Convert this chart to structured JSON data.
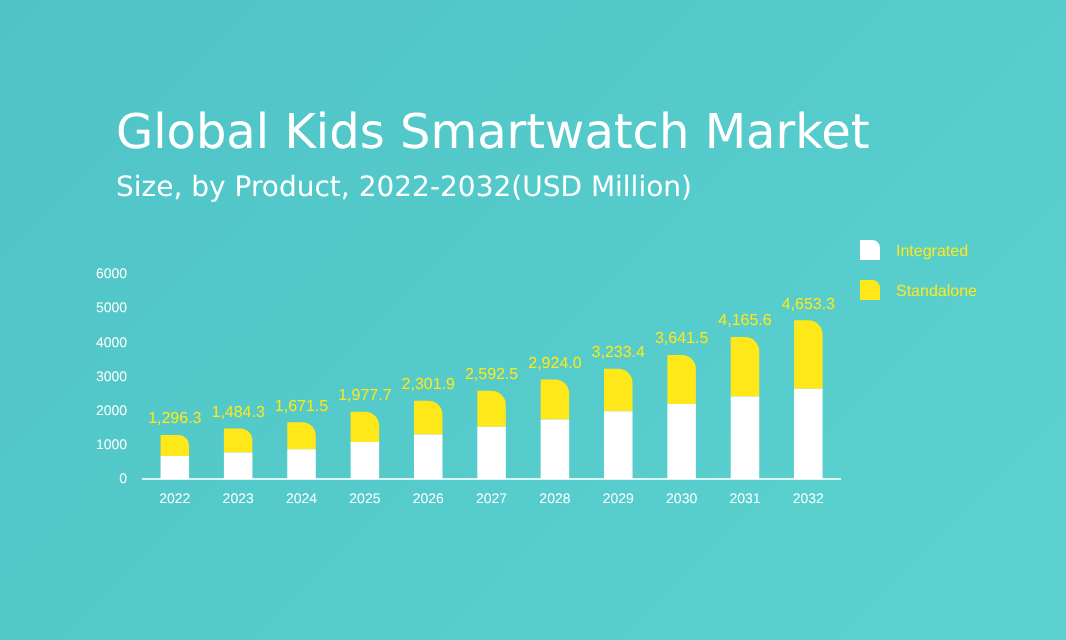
{
  "chart_data": {
    "type": "bar",
    "title": "Global Kids Smartwatch Market",
    "subtitle": "Size, by Product, 2022-2032(USD Million)",
    "categories": [
      "2022",
      "2023",
      "2024",
      "2025",
      "2026",
      "2027",
      "2028",
      "2029",
      "2030",
      "2031",
      "2032"
    ],
    "series": [
      {
        "name": "Integrated",
        "color": "#ffffff",
        "values": [
          680,
          780,
          880,
          1090,
          1310,
          1540,
          1750,
          1990,
          2200,
          2420,
          2650
        ]
      },
      {
        "name": "Standalone",
        "color": "#ffe81a",
        "values": [
          616.3,
          704.3,
          791.5,
          887.7,
          991.9,
          1052.5,
          1174.0,
          1243.4,
          1441.5,
          1745.6,
          2003.3
        ]
      }
    ],
    "stacked": true,
    "ylim": [
      0,
      6000
    ],
    "yticks": [
      0,
      1000,
      2000,
      3000,
      4000,
      5000,
      6000
    ],
    "grid": false,
    "legend": "top right",
    "totals": [
      "1,296.3",
      "1,484.3",
      "1,671.5",
      "1,977.7",
      "2,301.9",
      "2,592.5",
      "2,924.0",
      "3,233.4",
      "3,641.5",
      "4,165.6",
      "4,653.3"
    ]
  }
}
